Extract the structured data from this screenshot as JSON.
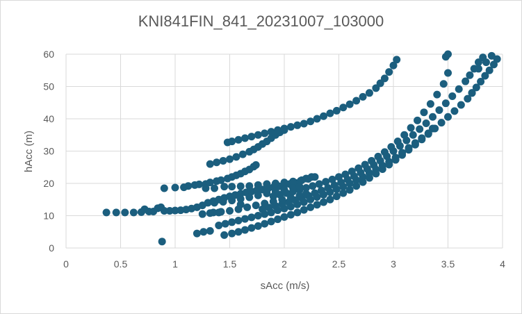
{
  "chart_data": {
    "type": "scatter",
    "title": "KNI841FIN_841_20231007_103000",
    "xlabel": "sAcc (m/s)",
    "ylabel": "hAcc (m)",
    "xlim": [
      0,
      4
    ],
    "ylim": [
      0,
      60
    ],
    "xticks": [
      0,
      0.5,
      1,
      1.5,
      2,
      2.5,
      3,
      3.5,
      4
    ],
    "yticks": [
      0,
      10,
      20,
      30,
      40,
      50,
      60
    ],
    "xtick_labels": [
      "0",
      "0.5",
      "1",
      "1.5",
      "2",
      "2.5",
      "3",
      "3.5",
      "4"
    ],
    "ytick_labels": [
      "0",
      "10",
      "20",
      "30",
      "40",
      "50",
      "60"
    ],
    "grid": true,
    "legend": "none",
    "marker_color": "#1b5e7e",
    "series": [
      {
        "values": [
          [
            0.37,
            11
          ],
          [
            0.46,
            11
          ],
          [
            0.54,
            11
          ],
          [
            0.62,
            11
          ],
          [
            0.69,
            11.1
          ],
          [
            0.72,
            12
          ],
          [
            0.76,
            11.3
          ],
          [
            0.8,
            11.3
          ],
          [
            0.84,
            12.3
          ],
          [
            0.87,
            12.6
          ],
          [
            0.9,
            11.5
          ],
          [
            0.95,
            11.5
          ],
          [
            1.0,
            11.6
          ],
          [
            1.05,
            11.7
          ],
          [
            1.1,
            11.9
          ],
          [
            1.15,
            12.2
          ],
          [
            1.2,
            12.6
          ],
          [
            1.25,
            13.2
          ],
          [
            1.3,
            14
          ],
          [
            1.35,
            14.5
          ],
          [
            1.4,
            15
          ],
          [
            1.45,
            15.5
          ],
          [
            1.5,
            16
          ],
          [
            1.55,
            16.4
          ],
          [
            1.6,
            16.8
          ],
          [
            1.65,
            17.2
          ],
          [
            1.7,
            17.5
          ],
          [
            1.75,
            17.9
          ],
          [
            1.8,
            18.1
          ],
          [
            1.85,
            18.4
          ],
          [
            1.9,
            18.8
          ],
          [
            1.95,
            19.1
          ],
          [
            2.0,
            19.4
          ],
          [
            2.05,
            19.8
          ],
          [
            2.1,
            20.2
          ],
          [
            2.15,
            20.8
          ],
          [
            2.2,
            21.5
          ],
          [
            2.25,
            22
          ],
          [
            0.88,
            2
          ],
          [
            0.9,
            18.5
          ],
          [
            1.0,
            18.7
          ],
          [
            1.08,
            18.8
          ],
          [
            1.12,
            19.2
          ],
          [
            1.18,
            19.5
          ],
          [
            1.22,
            19.7
          ],
          [
            1.28,
            19.8
          ],
          [
            1.32,
            20.3
          ],
          [
            1.38,
            20.7
          ],
          [
            1.42,
            21
          ],
          [
            1.48,
            21.5
          ],
          [
            1.52,
            22
          ],
          [
            1.56,
            22.5
          ],
          [
            1.6,
            23
          ],
          [
            1.64,
            23.7
          ],
          [
            1.68,
            24.3
          ],
          [
            1.72,
            25.2
          ],
          [
            1.74,
            25.7
          ],
          [
            1.32,
            26
          ],
          [
            1.38,
            26.5
          ],
          [
            1.44,
            27
          ],
          [
            1.5,
            27.5
          ],
          [
            1.56,
            28.2
          ],
          [
            1.62,
            29
          ],
          [
            1.68,
            29.8
          ],
          [
            1.72,
            30.5
          ],
          [
            1.76,
            31.3
          ],
          [
            1.8,
            32.2
          ],
          [
            1.84,
            33
          ],
          [
            1.88,
            34
          ],
          [
            1.92,
            35
          ],
          [
            1.96,
            35.8
          ],
          [
            2.0,
            36.5
          ],
          [
            1.48,
            32.7
          ],
          [
            1.52,
            33
          ],
          [
            1.58,
            33.5
          ],
          [
            1.64,
            34
          ],
          [
            1.7,
            34.5
          ],
          [
            1.76,
            35
          ],
          [
            1.82,
            35.5
          ],
          [
            1.88,
            36
          ],
          [
            1.94,
            36.5
          ],
          [
            2.0,
            37
          ],
          [
            2.06,
            37.5
          ],
          [
            2.12,
            38
          ],
          [
            2.18,
            38.5
          ],
          [
            2.24,
            39.2
          ],
          [
            2.3,
            40
          ],
          [
            2.36,
            40.8
          ],
          [
            2.42,
            41.7
          ],
          [
            2.48,
            42.5
          ],
          [
            2.54,
            43.5
          ],
          [
            2.6,
            44.5
          ],
          [
            2.66,
            45.6
          ],
          [
            2.72,
            46.8
          ],
          [
            2.78,
            48
          ],
          [
            2.84,
            49.5
          ],
          [
            2.88,
            51
          ],
          [
            2.92,
            52.5
          ],
          [
            2.96,
            54.5
          ],
          [
            3.0,
            56.5
          ],
          [
            3.03,
            58.3
          ],
          [
            1.28,
            18.5
          ],
          [
            1.36,
            18.5
          ],
          [
            1.45,
            19
          ],
          [
            1.52,
            19
          ],
          [
            1.6,
            19.1
          ],
          [
            1.68,
            19.2
          ],
          [
            1.76,
            19.5
          ],
          [
            1.84,
            19.8
          ],
          [
            1.92,
            20
          ],
          [
            2.0,
            20.3
          ],
          [
            2.08,
            20.6
          ],
          [
            2.16,
            21
          ],
          [
            2.22,
            21.4
          ],
          [
            2.28,
            22
          ],
          [
            1.2,
            4.5
          ],
          [
            1.26,
            5
          ],
          [
            1.32,
            5.3
          ],
          [
            1.4,
            7
          ],
          [
            1.46,
            7.5
          ],
          [
            1.52,
            8
          ],
          [
            1.58,
            8.5
          ],
          [
            1.64,
            9
          ],
          [
            1.7,
            9.5
          ],
          [
            1.76,
            10
          ],
          [
            1.82,
            10.5
          ],
          [
            1.88,
            11
          ],
          [
            1.94,
            11.7
          ],
          [
            2.0,
            12.2
          ],
          [
            2.06,
            12.8
          ],
          [
            2.12,
            13.5
          ],
          [
            2.18,
            14.2
          ],
          [
            2.24,
            15
          ],
          [
            2.3,
            15.8
          ],
          [
            2.36,
            16.5
          ],
          [
            2.42,
            17.3
          ],
          [
            2.48,
            18.2
          ],
          [
            2.54,
            19
          ],
          [
            2.6,
            20
          ],
          [
            2.66,
            21
          ],
          [
            2.72,
            22
          ],
          [
            2.78,
            23.2
          ],
          [
            2.84,
            24.3
          ],
          [
            2.9,
            25.5
          ],
          [
            2.96,
            26.7
          ],
          [
            3.02,
            28
          ],
          [
            3.08,
            29.5
          ],
          [
            3.14,
            31
          ],
          [
            3.2,
            32.5
          ],
          [
            3.26,
            34
          ],
          [
            3.32,
            35.5
          ],
          [
            3.36,
            37
          ],
          [
            1.45,
            4
          ],
          [
            1.52,
            4.5
          ],
          [
            1.58,
            5
          ],
          [
            1.64,
            5.6
          ],
          [
            1.7,
            6.2
          ],
          [
            1.76,
            6.8
          ],
          [
            1.82,
            7.5
          ],
          [
            1.88,
            8.2
          ],
          [
            1.94,
            8.9
          ],
          [
            2.0,
            9.6
          ],
          [
            2.06,
            10.3
          ],
          [
            2.12,
            11
          ],
          [
            2.18,
            11.8
          ],
          [
            2.24,
            12.6
          ],
          [
            2.3,
            13.4
          ],
          [
            2.36,
            14.2
          ],
          [
            2.42,
            15
          ],
          [
            2.48,
            16
          ],
          [
            2.54,
            17
          ],
          [
            2.6,
            18
          ],
          [
            2.66,
            19.2
          ],
          [
            2.72,
            20.4
          ],
          [
            2.78,
            21.7
          ],
          [
            2.84,
            23
          ],
          [
            2.9,
            24.4
          ],
          [
            2.96,
            25.8
          ],
          [
            3.02,
            27.3
          ],
          [
            3.08,
            28.8
          ],
          [
            3.14,
            30.4
          ],
          [
            3.2,
            32
          ],
          [
            3.26,
            33.6
          ],
          [
            3.32,
            35.3
          ],
          [
            3.38,
            37
          ],
          [
            3.44,
            38.8
          ],
          [
            3.5,
            40.6
          ],
          [
            3.56,
            42.4
          ],
          [
            3.62,
            44.3
          ],
          [
            3.68,
            46.2
          ],
          [
            3.72,
            48
          ],
          [
            3.76,
            49.7
          ],
          [
            3.8,
            51.5
          ],
          [
            3.84,
            53.3
          ],
          [
            3.88,
            55
          ],
          [
            3.92,
            56.8
          ],
          [
            3.95,
            58.5
          ],
          [
            1.8,
            12
          ],
          [
            1.86,
            12.5
          ],
          [
            1.92,
            13
          ],
          [
            1.98,
            13.6
          ],
          [
            2.04,
            14.2
          ],
          [
            2.1,
            14.8
          ],
          [
            2.16,
            15.5
          ],
          [
            2.22,
            16.2
          ],
          [
            2.28,
            17
          ],
          [
            2.34,
            17.8
          ],
          [
            2.4,
            18.6
          ],
          [
            2.46,
            19.4
          ],
          [
            2.52,
            20.3
          ],
          [
            2.58,
            21.2
          ],
          [
            2.64,
            22.2
          ],
          [
            2.7,
            23.3
          ],
          [
            2.76,
            24.5
          ],
          [
            2.82,
            25.7
          ],
          [
            2.88,
            27
          ],
          [
            2.94,
            28.4
          ],
          [
            3.0,
            30
          ],
          [
            3.06,
            31.6
          ],
          [
            3.12,
            33.3
          ],
          [
            3.18,
            35
          ],
          [
            3.24,
            36.8
          ],
          [
            3.3,
            38.6
          ],
          [
            3.36,
            40.6
          ],
          [
            3.42,
            42.7
          ],
          [
            3.48,
            44.8
          ],
          [
            3.54,
            47
          ],
          [
            3.6,
            49.2
          ],
          [
            3.66,
            51.6
          ],
          [
            3.7,
            53.5
          ],
          [
            3.74,
            55.5
          ],
          [
            3.78,
            57.5
          ],
          [
            3.82,
            59
          ],
          [
            1.9,
            16
          ],
          [
            1.96,
            16.5
          ],
          [
            2.02,
            17
          ],
          [
            2.08,
            17.5
          ],
          [
            2.14,
            18
          ],
          [
            2.2,
            18.6
          ],
          [
            2.26,
            19.2
          ],
          [
            2.32,
            19.8
          ],
          [
            2.38,
            20.5
          ],
          [
            2.44,
            21.2
          ],
          [
            2.5,
            22
          ],
          [
            2.56,
            22.8
          ],
          [
            2.62,
            23.7
          ],
          [
            2.68,
            24.7
          ],
          [
            2.74,
            25.8
          ],
          [
            2.8,
            27
          ],
          [
            2.86,
            28.3
          ],
          [
            2.92,
            29.7
          ],
          [
            2.98,
            31.3
          ],
          [
            3.04,
            33
          ],
          [
            3.1,
            35
          ],
          [
            3.16,
            37.2
          ],
          [
            3.22,
            39.5
          ],
          [
            3.28,
            42
          ],
          [
            3.34,
            44.6
          ],
          [
            3.4,
            47.5
          ],
          [
            3.46,
            50.8
          ],
          [
            3.5,
            54.2
          ],
          [
            3.48,
            59.2
          ],
          [
            3.5,
            60
          ],
          [
            3.72,
            48
          ],
          [
            3.78,
            55.5
          ],
          [
            3.85,
            57.5
          ],
          [
            3.9,
            59.5
          ],
          [
            1.35,
            11
          ],
          [
            1.42,
            11.2
          ],
          [
            1.5,
            11.5
          ],
          [
            1.58,
            12
          ],
          [
            1.66,
            12.6
          ],
          [
            1.74,
            13.2
          ],
          [
            1.82,
            13.8
          ],
          [
            1.9,
            14.4
          ],
          [
            1.98,
            15
          ],
          [
            2.06,
            15.6
          ],
          [
            2.14,
            16.2
          ],
          [
            2.2,
            16.8
          ],
          [
            1.36,
            14
          ],
          [
            1.44,
            14.3
          ],
          [
            1.52,
            14.7
          ],
          [
            1.6,
            15.2
          ],
          [
            1.68,
            15.7
          ],
          [
            1.76,
            16.3
          ],
          [
            1.84,
            16.9
          ],
          [
            1.92,
            17.4
          ],
          [
            2.0,
            18
          ],
          [
            2.08,
            18.6
          ],
          [
            2.14,
            19
          ],
          [
            1.25,
            10.5
          ],
          [
            1.32,
            10.8
          ],
          [
            1.4,
            11
          ],
          [
            1.6,
            13.5
          ]
        ]
      }
    ]
  }
}
